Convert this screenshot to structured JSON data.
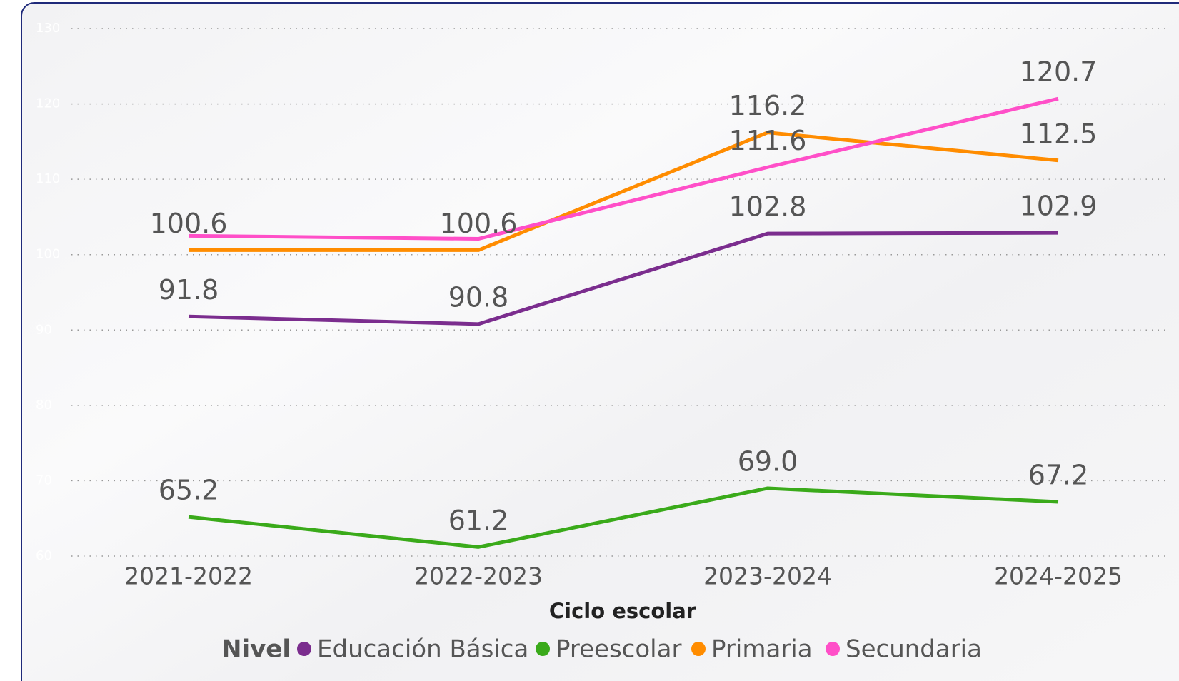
{
  "chart_data": {
    "type": "line",
    "x_label": "Ciclo escolar",
    "legend_title": "Nivel",
    "categories": [
      "2021-2022",
      "2022-2023",
      "2023-2024",
      "2024-2025"
    ],
    "ylim": [
      60,
      130
    ],
    "yticks": [
      60,
      70,
      80,
      90,
      100,
      110,
      120,
      130
    ],
    "grid": true,
    "legend": "bottom",
    "series": [
      {
        "name": "Educación Básica",
        "color": "#7b2d8e",
        "values": [
          91.8,
          90.8,
          102.8,
          102.9
        ]
      },
      {
        "name": "Preescolar",
        "color": "#3aaa1a",
        "values": [
          65.2,
          61.2,
          69.0,
          67.2
        ],
        "value_labels": [
          "65.2",
          "61.2",
          "69.0",
          "67.2"
        ]
      },
      {
        "name": "Primaria",
        "color": "#ff8c00",
        "values": [
          100.6,
          100.6,
          116.2,
          112.5
        ]
      },
      {
        "name": "Secundaria",
        "color": "#ff4fc8",
        "values": [
          102.5,
          102.1,
          111.6,
          120.7
        ],
        "value_labels": [
          null,
          null,
          "111.6",
          "120.7"
        ]
      }
    ]
  }
}
